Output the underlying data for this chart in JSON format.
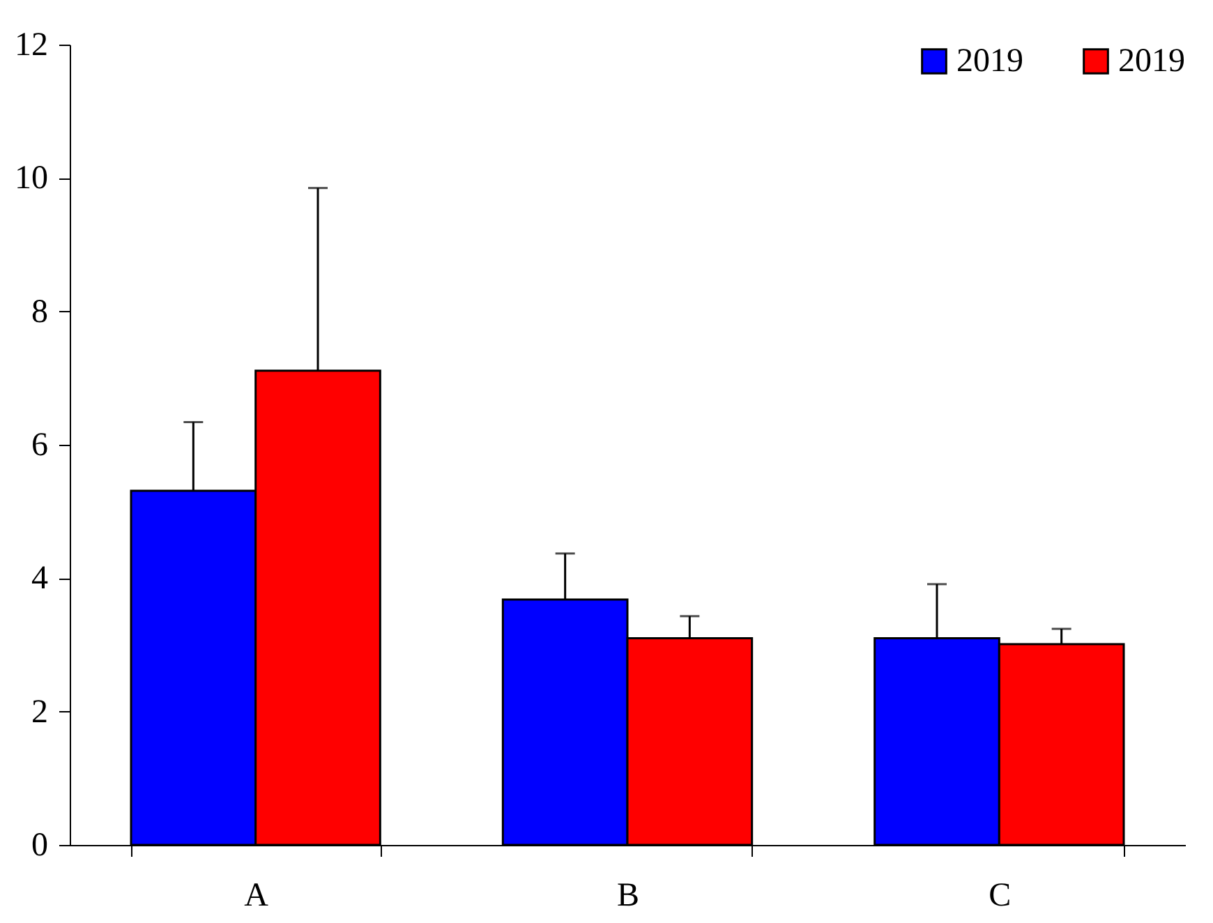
{
  "chart_data": {
    "type": "bar",
    "categories": [
      "A",
      "B",
      "C"
    ],
    "series": [
      {
        "name": "2019",
        "color": "#0000ff",
        "values": [
          5.31,
          3.68,
          3.1
        ],
        "errors": [
          [
            5.31,
            6.34
          ],
          [
            3.68,
            4.37
          ],
          [
            3.1,
            3.91
          ]
        ]
      },
      {
        "name": "2019",
        "color": "#ff0000",
        "values": [
          7.11,
          3.1,
          3.01
        ],
        "errors": [
          [
            7.11,
            9.85
          ],
          [
            3.1,
            3.43
          ],
          [
            3.01,
            3.24
          ]
        ]
      }
    ],
    "ylim": [
      0,
      12
    ],
    "yticks": [
      0,
      2,
      4,
      6,
      8,
      10,
      12
    ],
    "grid": false,
    "legend": "top right"
  }
}
